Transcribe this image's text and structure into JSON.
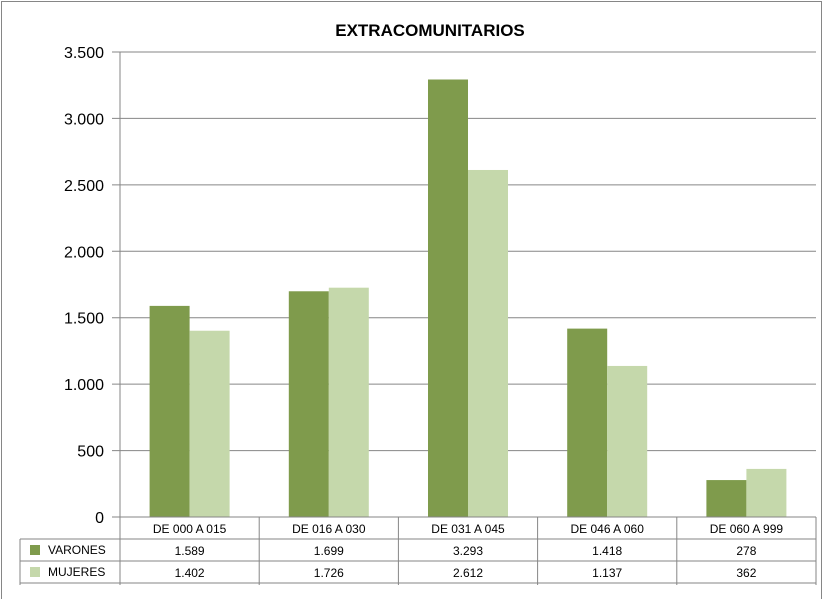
{
  "chart_data": {
    "type": "bar",
    "title": "EXTRACOMUNITARIOS",
    "xlabel": "",
    "ylabel": "",
    "ylim": [
      0,
      3500
    ],
    "yticks": [
      0,
      500,
      1000,
      1500,
      2000,
      2500,
      3000,
      3500
    ],
    "ytick_labels": [
      "0",
      "500",
      "1.000",
      "1.500",
      "2.000",
      "2.500",
      "3.000",
      "3.500"
    ],
    "grid": true,
    "legend": "data-table",
    "categories": [
      "DE 000 A 015",
      "DE 016 A 030",
      "DE 031 A 045",
      "DE 046 A 060",
      "DE 060 A 999"
    ],
    "series": [
      {
        "name": "VARONES",
        "color": "#7f9b4c",
        "values": [
          1589,
          1699,
          3293,
          1418,
          278
        ],
        "labels": [
          "1.589",
          "1.699",
          "3.293",
          "1.418",
          "278"
        ]
      },
      {
        "name": "MUJERES",
        "color": "#c5d8ab",
        "values": [
          1402,
          1726,
          2612,
          1137,
          362
        ],
        "labels": [
          "1.402",
          "1.726",
          "2.612",
          "1.137",
          "362"
        ]
      }
    ]
  }
}
